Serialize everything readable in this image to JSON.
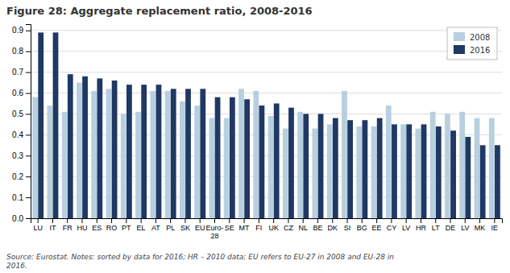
{
  "chart_data": {
    "type": "bar",
    "title": "Figure 28: Aggregate replacement ratio, 2008-2016",
    "annotations": [
      "Source: Eurostat. Notes: sorted by data for 2016; HR – 2010 data; EU refers to EU-27 in 2008 and EU-28 in\n2016."
    ],
    "categories": [
      "LU",
      "IT",
      "FR",
      "HU",
      "ES",
      "RO",
      "PT",
      "EL",
      "AT",
      "PL",
      "SK",
      "EU",
      "Euro-\n28",
      "SE",
      "MT",
      "FI",
      "UK",
      "CZ",
      "NL",
      "BE",
      "DK",
      "SI",
      "BG",
      "EE",
      "CY",
      "LV",
      "HR",
      "LT",
      "DE",
      "LV",
      "MK",
      "IE"
    ],
    "series": [
      {
        "name": "2008",
        "color": "#b8cfe0",
        "values": [
          0.58,
          0.54,
          0.51,
          0.65,
          0.61,
          0.62,
          0.5,
          0.51,
          0.61,
          0.61,
          0.56,
          0.54,
          0.48,
          0.48,
          0.62,
          0.61,
          0.49,
          0.43,
          0.51,
          0.43,
          0.45,
          0.61,
          0.44,
          0.44,
          0.54,
          0.45,
          0.43,
          0.51,
          0.5,
          0.51,
          0.48,
          0.48
        ]
      },
      {
        "name": "2016",
        "color": "#1f3864",
        "values": [
          0.89,
          0.89,
          0.69,
          0.68,
          0.67,
          0.66,
          0.64,
          0.64,
          0.64,
          0.62,
          0.62,
          0.62,
          0.58,
          0.58,
          0.57,
          0.54,
          0.55,
          0.53,
          0.5,
          0.5,
          0.48,
          0.47,
          0.47,
          0.48,
          0.45,
          0.45,
          0.45,
          0.44,
          0.42,
          0.39,
          0.35,
          0.35
        ]
      }
    ],
    "ylim": [
      0,
      0.93
    ],
    "yticks": [
      {
        "value": 0,
        "label": "0.0"
      },
      0.1,
      0.2,
      0.3,
      0.4,
      0.5,
      0.6,
      0.7,
      0.8,
      0.9
    ],
    "grid": true,
    "legend": "upper right"
  }
}
